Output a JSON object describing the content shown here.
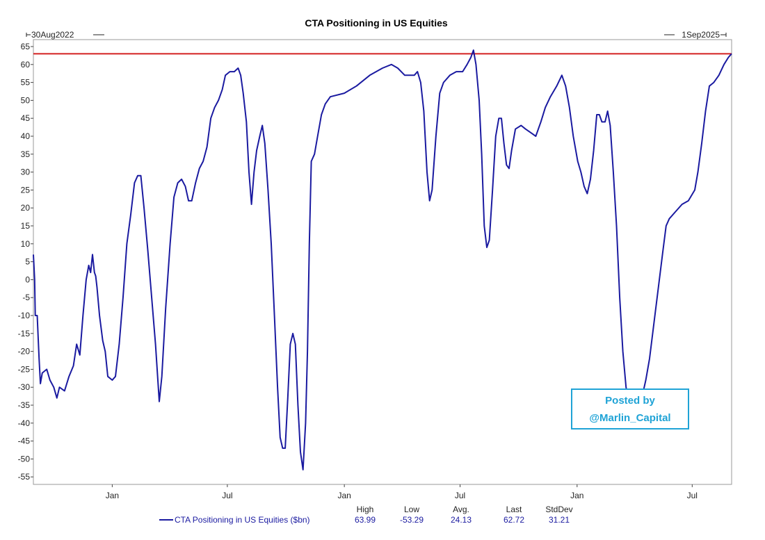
{
  "chart_data": {
    "type": "line",
    "title": "CTA Positioning in US Equities",
    "range": {
      "start_label": "30Aug2022",
      "end_label": "1Sep2025"
    },
    "ylim": [
      -58,
      65
    ],
    "y_ticks": [
      65,
      60,
      55,
      50,
      45,
      40,
      35,
      30,
      25,
      20,
      15,
      10,
      5,
      0,
      -5,
      -10,
      -15,
      -20,
      -25,
      -30,
      -35,
      -40,
      -45,
      -50,
      -55
    ],
    "x_ticks": [
      {
        "label": "Jan",
        "date": "2023-01-01"
      },
      {
        "label": "Jul",
        "date": "2023-07-01"
      },
      {
        "label": "Jan",
        "date": "2024-01-01"
      },
      {
        "label": "Jul",
        "date": "2024-07-01"
      },
      {
        "label": "Jan",
        "date": "2025-01-01"
      },
      {
        "label": "Jul",
        "date": "2025-07-01"
      }
    ],
    "xlim": [
      "2022-08-30",
      "2025-09-01"
    ],
    "reference_line": {
      "value": 63,
      "color": "#d42020"
    },
    "grid": false,
    "series": [
      {
        "name": "CTA Positioning in US Equities ($bn)",
        "color": "#1a1aa0",
        "points": [
          [
            "2022-08-30",
            7
          ],
          [
            "2022-09-01",
            0
          ],
          [
            "2022-09-02",
            -10
          ],
          [
            "2022-09-05",
            -10
          ],
          [
            "2022-09-08",
            -22
          ],
          [
            "2022-09-10",
            -29
          ],
          [
            "2022-09-13",
            -26
          ],
          [
            "2022-09-20",
            -25
          ],
          [
            "2022-09-25",
            -28
          ],
          [
            "2022-10-01",
            -30
          ],
          [
            "2022-10-06",
            -33
          ],
          [
            "2022-10-10",
            -30
          ],
          [
            "2022-10-18",
            -31
          ],
          [
            "2022-10-25",
            -27
          ],
          [
            "2022-11-01",
            -24
          ],
          [
            "2022-11-06",
            -18
          ],
          [
            "2022-11-11",
            -21
          ],
          [
            "2022-11-16",
            -10
          ],
          [
            "2022-11-21",
            0
          ],
          [
            "2022-11-25",
            4
          ],
          [
            "2022-11-28",
            2
          ],
          [
            "2022-12-01",
            7
          ],
          [
            "2022-12-04",
            2
          ],
          [
            "2022-12-06",
            1
          ],
          [
            "2022-12-08",
            -2
          ],
          [
            "2022-12-12",
            -10
          ],
          [
            "2022-12-17",
            -17
          ],
          [
            "2022-12-21",
            -20
          ],
          [
            "2022-12-25",
            -27
          ],
          [
            "2023-01-01",
            -28
          ],
          [
            "2023-01-06",
            -27
          ],
          [
            "2023-01-12",
            -18
          ],
          [
            "2023-01-18",
            -5
          ],
          [
            "2023-01-24",
            10
          ],
          [
            "2023-01-30",
            18
          ],
          [
            "2023-02-05",
            27
          ],
          [
            "2023-02-10",
            29
          ],
          [
            "2023-02-15",
            29
          ],
          [
            "2023-02-20",
            20
          ],
          [
            "2023-02-26",
            8
          ],
          [
            "2023-03-04",
            -5
          ],
          [
            "2023-03-10",
            -18
          ],
          [
            "2023-03-16",
            -34
          ],
          [
            "2023-03-20",
            -27
          ],
          [
            "2023-03-26",
            -8
          ],
          [
            "2023-04-02",
            10
          ],
          [
            "2023-04-08",
            23
          ],
          [
            "2023-04-14",
            27
          ],
          [
            "2023-04-20",
            28
          ],
          [
            "2023-04-26",
            26
          ],
          [
            "2023-05-01",
            22
          ],
          [
            "2023-05-06",
            22
          ],
          [
            "2023-05-12",
            27
          ],
          [
            "2023-05-18",
            31
          ],
          [
            "2023-05-24",
            33
          ],
          [
            "2023-05-30",
            37
          ],
          [
            "2023-06-05",
            45
          ],
          [
            "2023-06-11",
            48
          ],
          [
            "2023-06-17",
            50
          ],
          [
            "2023-06-23",
            53
          ],
          [
            "2023-06-28",
            57
          ],
          [
            "2023-07-05",
            58
          ],
          [
            "2023-07-12",
            58
          ],
          [
            "2023-07-18",
            59
          ],
          [
            "2023-07-22",
            57
          ],
          [
            "2023-07-26",
            52
          ],
          [
            "2023-07-31",
            44
          ],
          [
            "2023-08-04",
            30
          ],
          [
            "2023-08-08",
            21
          ],
          [
            "2023-08-12",
            30
          ],
          [
            "2023-08-16",
            36
          ],
          [
            "2023-08-21",
            40
          ],
          [
            "2023-08-25",
            43
          ],
          [
            "2023-08-29",
            38
          ],
          [
            "2023-09-03",
            25
          ],
          [
            "2023-09-08",
            10
          ],
          [
            "2023-09-13",
            -10
          ],
          [
            "2023-09-18",
            -30
          ],
          [
            "2023-09-22",
            -44
          ],
          [
            "2023-09-26",
            -47
          ],
          [
            "2023-09-30",
            -47
          ],
          [
            "2023-10-04",
            -33
          ],
          [
            "2023-10-08",
            -18
          ],
          [
            "2023-10-12",
            -15
          ],
          [
            "2023-10-16",
            -18
          ],
          [
            "2023-10-20",
            -35
          ],
          [
            "2023-10-24",
            -48
          ],
          [
            "2023-10-28",
            -53
          ],
          [
            "2023-11-01",
            -40
          ],
          [
            "2023-11-04",
            -20
          ],
          [
            "2023-11-07",
            10
          ],
          [
            "2023-11-10",
            33
          ],
          [
            "2023-11-15",
            35
          ],
          [
            "2023-11-20",
            40
          ],
          [
            "2023-11-26",
            46
          ],
          [
            "2023-12-02",
            49
          ],
          [
            "2023-12-10",
            51
          ],
          [
            "2024-01-01",
            52
          ],
          [
            "2024-01-20",
            54
          ],
          [
            "2024-02-10",
            57
          ],
          [
            "2024-03-01",
            59
          ],
          [
            "2024-03-15",
            60
          ],
          [
            "2024-03-25",
            59
          ],
          [
            "2024-04-05",
            57
          ],
          [
            "2024-04-20",
            57
          ],
          [
            "2024-04-25",
            58
          ],
          [
            "2024-04-30",
            55
          ],
          [
            "2024-05-05",
            47
          ],
          [
            "2024-05-10",
            30
          ],
          [
            "2024-05-14",
            22
          ],
          [
            "2024-05-18",
            25
          ],
          [
            "2024-05-24",
            40
          ],
          [
            "2024-05-30",
            52
          ],
          [
            "2024-06-05",
            55
          ],
          [
            "2024-06-15",
            57
          ],
          [
            "2024-06-25",
            58
          ],
          [
            "2024-07-05",
            58
          ],
          [
            "2024-07-12",
            60
          ],
          [
            "2024-07-18",
            62
          ],
          [
            "2024-07-22",
            64
          ],
          [
            "2024-07-26",
            60
          ],
          [
            "2024-07-31",
            50
          ],
          [
            "2024-08-04",
            35
          ],
          [
            "2024-08-08",
            15
          ],
          [
            "2024-08-12",
            9
          ],
          [
            "2024-08-16",
            11
          ],
          [
            "2024-08-21",
            25
          ],
          [
            "2024-08-26",
            40
          ],
          [
            "2024-08-31",
            45
          ],
          [
            "2024-09-04",
            45
          ],
          [
            "2024-09-08",
            38
          ],
          [
            "2024-09-12",
            32
          ],
          [
            "2024-09-16",
            31
          ],
          [
            "2024-09-20",
            36
          ],
          [
            "2024-09-26",
            42
          ],
          [
            "2024-10-05",
            43
          ],
          [
            "2024-10-12",
            42
          ],
          [
            "2024-10-20",
            41
          ],
          [
            "2024-10-28",
            40
          ],
          [
            "2024-11-05",
            44
          ],
          [
            "2024-11-12",
            48
          ],
          [
            "2024-11-20",
            51
          ],
          [
            "2024-11-30",
            54
          ],
          [
            "2024-12-08",
            57
          ],
          [
            "2024-12-14",
            54
          ],
          [
            "2024-12-20",
            48
          ],
          [
            "2024-12-26",
            40
          ],
          [
            "2025-01-02",
            33
          ],
          [
            "2025-01-07",
            30
          ],
          [
            "2025-01-12",
            26
          ],
          [
            "2025-01-17",
            24
          ],
          [
            "2025-01-22",
            28
          ],
          [
            "2025-01-27",
            36
          ],
          [
            "2025-02-01",
            46
          ],
          [
            "2025-02-05",
            46
          ],
          [
            "2025-02-09",
            44
          ],
          [
            "2025-02-14",
            44
          ],
          [
            "2025-02-18",
            47
          ],
          [
            "2025-02-22",
            43
          ],
          [
            "2025-02-27",
            30
          ],
          [
            "2025-03-04",
            15
          ],
          [
            "2025-03-09",
            -5
          ],
          [
            "2025-03-14",
            -20
          ],
          [
            "2025-03-19",
            -30
          ],
          [
            "2025-03-23",
            -34
          ],
          [
            "2025-03-27",
            -33
          ],
          [
            "2025-04-02",
            -33
          ],
          [
            "2025-04-07",
            -31
          ],
          [
            "2025-04-10",
            -35
          ],
          [
            "2025-04-14",
            -32
          ],
          [
            "2025-04-19",
            -28
          ],
          [
            "2025-04-25",
            -22
          ],
          [
            "2025-05-02",
            -12
          ],
          [
            "2025-05-09",
            -2
          ],
          [
            "2025-05-16",
            8
          ],
          [
            "2025-05-21",
            15
          ],
          [
            "2025-05-26",
            17
          ],
          [
            "2025-06-05",
            19
          ],
          [
            "2025-06-15",
            21
          ],
          [
            "2025-06-25",
            22
          ],
          [
            "2025-07-05",
            25
          ],
          [
            "2025-07-10",
            30
          ],
          [
            "2025-07-16",
            38
          ],
          [
            "2025-07-22",
            47
          ],
          [
            "2025-07-28",
            54
          ],
          [
            "2025-08-04",
            55
          ],
          [
            "2025-08-12",
            57
          ],
          [
            "2025-08-20",
            60
          ],
          [
            "2025-08-27",
            62
          ],
          [
            "2025-09-01",
            63
          ]
        ]
      }
    ],
    "stats": {
      "headers": [
        "High",
        "Low",
        "Avg.",
        "Last",
        "StdDev"
      ],
      "values": [
        "63.99",
        "-53.29",
        "24.13",
        "62.72",
        "31.21"
      ]
    }
  },
  "watermark": {
    "line1": "Posted by",
    "line2": "@Marlin_Capital",
    "color": "#1fa3d6"
  }
}
